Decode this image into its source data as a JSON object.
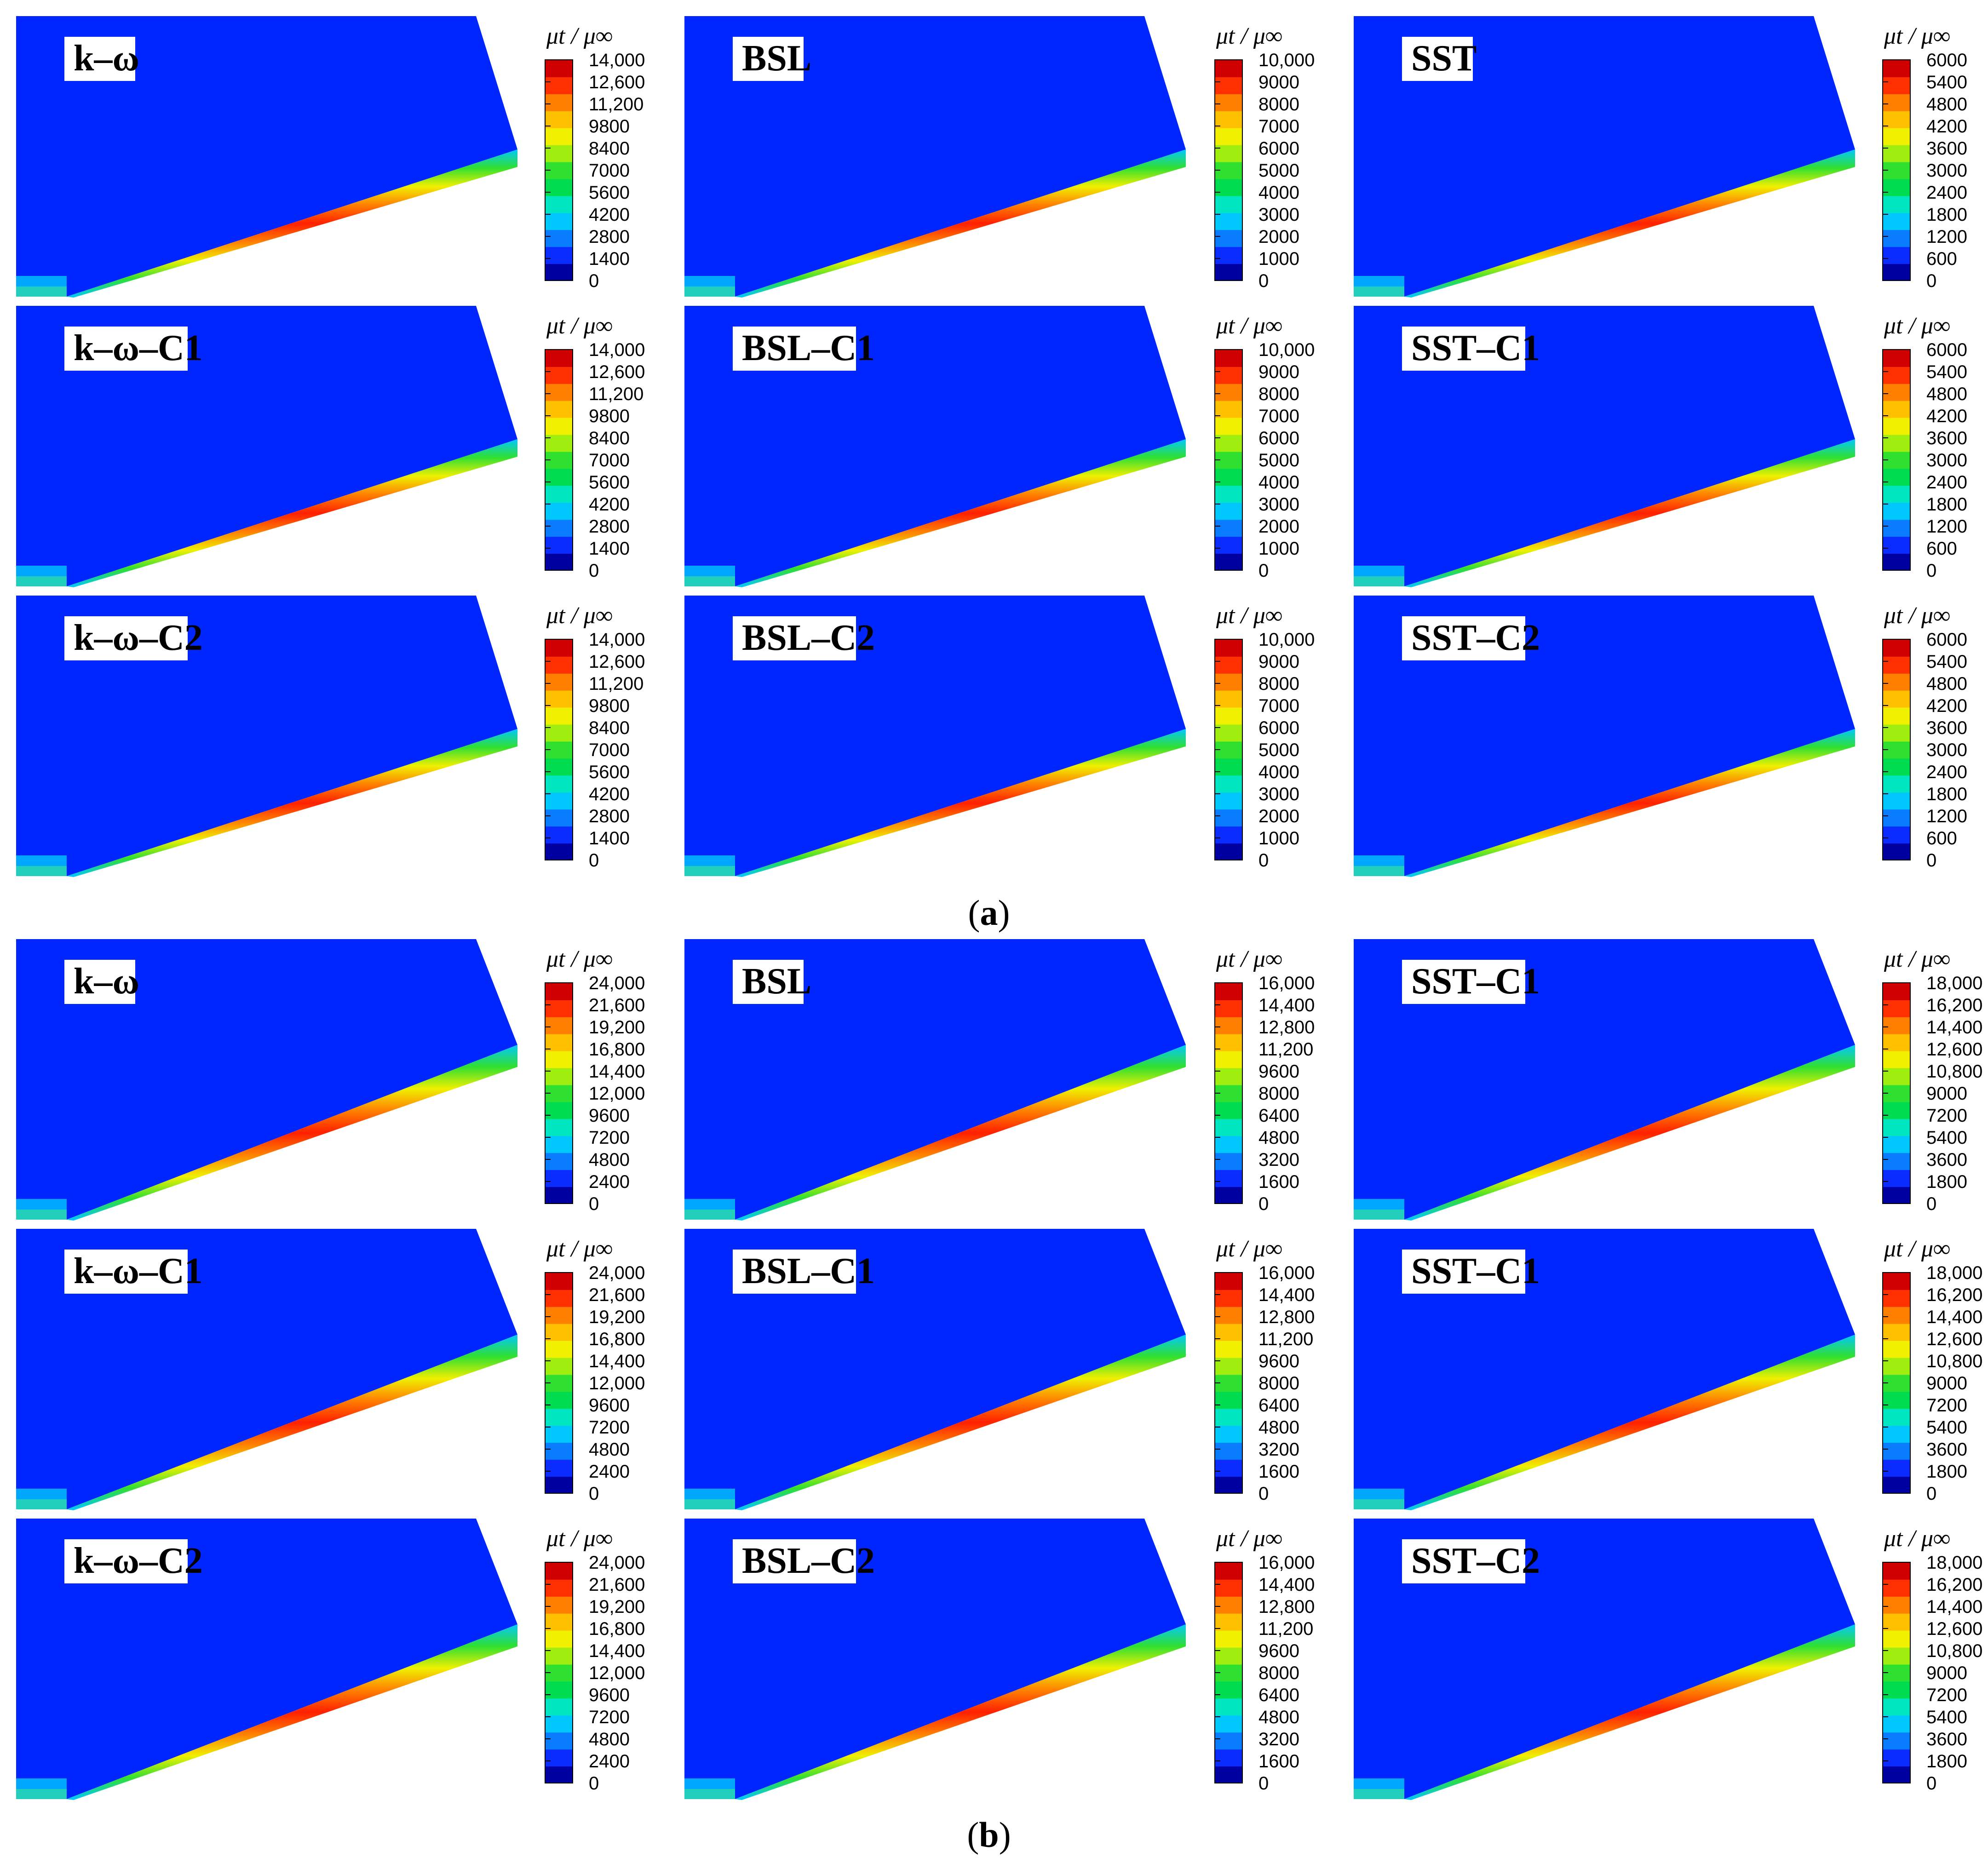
{
  "colorbar_label": "μt / μ∞",
  "panels": [
    {
      "letter": "a",
      "rows": [
        [
          {
            "model": "k–ω",
            "max": 14000,
            "ticks": [
              "14,000",
              "12,600",
              "11,200",
              "9800",
              "8400",
              "7000",
              "5600",
              "4200",
              "2800",
              "1400",
              "0"
            ]
          },
          {
            "model": "BSL",
            "max": 10000,
            "ticks": [
              "10,000",
              "9000",
              "8000",
              "7000",
              "6000",
              "5000",
              "4000",
              "3000",
              "2000",
              "1000",
              "0"
            ]
          },
          {
            "model": "SST",
            "max": 6000,
            "ticks": [
              "6000",
              "5400",
              "4800",
              "4200",
              "3600",
              "3000",
              "2400",
              "1800",
              "1200",
              "600",
              "0"
            ]
          }
        ],
        [
          {
            "model": "k–ω–C1",
            "max": 14000,
            "ticks": [
              "14,000",
              "12,600",
              "11,200",
              "9800",
              "8400",
              "7000",
              "5600",
              "4200",
              "2800",
              "1400",
              "0"
            ]
          },
          {
            "model": "BSL–C1",
            "max": 10000,
            "ticks": [
              "10,000",
              "9000",
              "8000",
              "7000",
              "6000",
              "5000",
              "4000",
              "3000",
              "2000",
              "1000",
              "0"
            ]
          },
          {
            "model": "SST–C1",
            "max": 6000,
            "ticks": [
              "6000",
              "5400",
              "4800",
              "4200",
              "3600",
              "3000",
              "2400",
              "1800",
              "1200",
              "600",
              "0"
            ]
          }
        ],
        [
          {
            "model": "k–ω–C2",
            "max": 14000,
            "ticks": [
              "14,000",
              "12,600",
              "11,200",
              "9800",
              "8400",
              "7000",
              "5600",
              "4200",
              "2800",
              "1400",
              "0"
            ]
          },
          {
            "model": "BSL–C2",
            "max": 10000,
            "ticks": [
              "10,000",
              "9000",
              "8000",
              "7000",
              "6000",
              "5000",
              "4000",
              "3000",
              "2000",
              "1000",
              "0"
            ]
          },
          {
            "model": "SST–C2",
            "max": 6000,
            "ticks": [
              "6000",
              "5400",
              "4800",
              "4200",
              "3600",
              "3000",
              "2400",
              "1800",
              "1200",
              "600",
              "0"
            ]
          }
        ]
      ]
    },
    {
      "letter": "b",
      "rows": [
        [
          {
            "model": "k–ω",
            "max": 24000,
            "ticks": [
              "24,000",
              "21,600",
              "19,200",
              "16,800",
              "14,400",
              "12,000",
              "9600",
              "7200",
              "4800",
              "2400",
              "0"
            ]
          },
          {
            "model": "BSL",
            "max": 16000,
            "ticks": [
              "16,000",
              "14,400",
              "12,800",
              "11,200",
              "9600",
              "8000",
              "6400",
              "4800",
              "3200",
              "1600",
              "0"
            ]
          },
          {
            "model": "SST–C1",
            "max": 18000,
            "ticks": [
              "18,000",
              "16,200",
              "14,400",
              "12,600",
              "10,800",
              "9000",
              "7200",
              "5400",
              "3600",
              "1800",
              "0"
            ]
          }
        ],
        [
          {
            "model": "k–ω–C1",
            "max": 24000,
            "ticks": [
              "24,000",
              "21,600",
              "19,200",
              "16,800",
              "14,400",
              "12,000",
              "9600",
              "7200",
              "4800",
              "2400",
              "0"
            ]
          },
          {
            "model": "BSL–C1",
            "max": 16000,
            "ticks": [
              "16,000",
              "14,400",
              "12,800",
              "11,200",
              "9600",
              "8000",
              "6400",
              "4800",
              "3200",
              "1600",
              "0"
            ]
          },
          {
            "model": "SST–C1",
            "max": 18000,
            "ticks": [
              "18,000",
              "16,200",
              "14,400",
              "12,600",
              "10,800",
              "9000",
              "7200",
              "5400",
              "3600",
              "1800",
              "0"
            ]
          }
        ],
        [
          {
            "model": "k–ω–C2",
            "max": 24000,
            "ticks": [
              "24,000",
              "21,600",
              "19,200",
              "16,800",
              "14,400",
              "12,000",
              "9600",
              "7200",
              "4800",
              "2400",
              "0"
            ]
          },
          {
            "model": "BSL–C2",
            "max": 16000,
            "ticks": [
              "16,000",
              "14,400",
              "12,800",
              "11,200",
              "9600",
              "8000",
              "6400",
              "4800",
              "3200",
              "1600",
              "0"
            ]
          },
          {
            "model": "SST–C2",
            "max": 18000,
            "ticks": [
              "18,000",
              "16,200",
              "14,400",
              "12,600",
              "10,800",
              "9000",
              "7200",
              "5400",
              "3600",
              "1800",
              "0"
            ]
          }
        ]
      ]
    }
  ],
  "colors": {
    "background": "#0026ff",
    "colormap": [
      "#0000a0",
      "#0a2cff",
      "#0a7cff",
      "#00c8ff",
      "#00e6c0",
      "#00dc50",
      "#30e030",
      "#a0ee10",
      "#f0f000",
      "#ffc000",
      "#ff8000",
      "#ff3000",
      "#d00000"
    ]
  }
}
